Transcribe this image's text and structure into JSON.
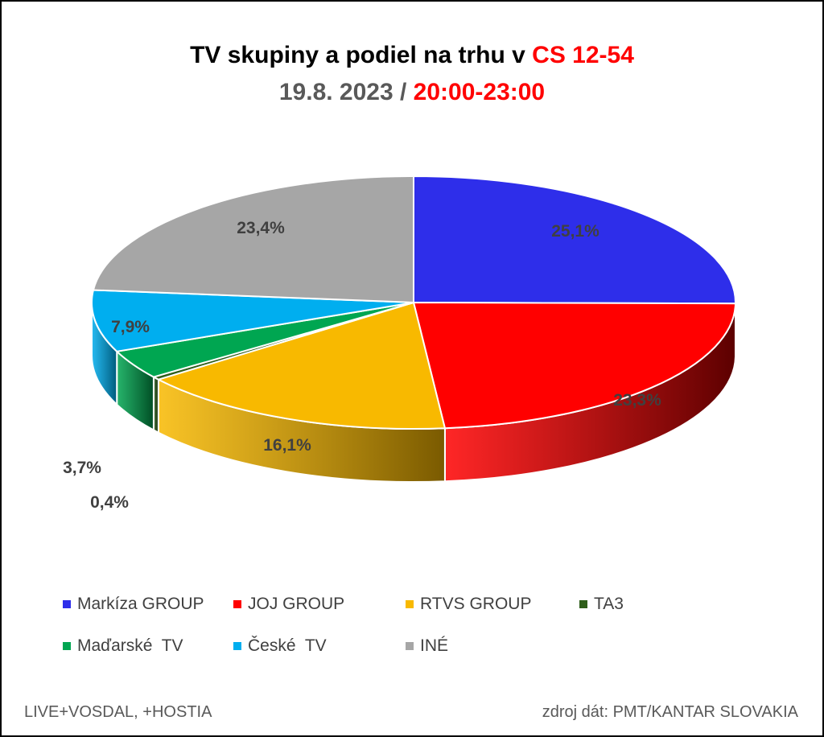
{
  "title": {
    "line1_black": "TV skupiny a podiel na trhu v ",
    "line1_red": "CS 12-54",
    "line2_grey": "19.8. 2023 / ",
    "line2_red": "20:00-23:00"
  },
  "chart_data": {
    "type": "pie",
    "style": "3d-exploded-one",
    "categories": [
      "Markíza GROUP",
      "JOJ GROUP",
      "RTVS GROUP",
      "TA3",
      "Maďarské  TV",
      "České  TV",
      "INÉ"
    ],
    "values": [
      25.1,
      23.3,
      16.1,
      0.4,
      3.7,
      7.9,
      23.4
    ],
    "labels": [
      "25,1%",
      "23,3%",
      "16,1%",
      "0,4%",
      "3,7%",
      "7,9%",
      "23,4%"
    ],
    "colors": [
      "#2e2eea",
      "#ff0000",
      "#f8b900",
      "#2e5e1a",
      "#00a651",
      "#00aeef",
      "#a6a6a6"
    ],
    "side_colors_dark": [
      "#14148a",
      "#5c0000",
      "#7a5a00",
      "#173010",
      "#004d24",
      "#005a7a",
      "#555555"
    ],
    "legend_position": "bottom"
  },
  "footer": {
    "left": "LIVE+VOSDAL, +HOSTIA",
    "right": "zdroj dát: PMT/KANTAR SLOVAKIA"
  }
}
